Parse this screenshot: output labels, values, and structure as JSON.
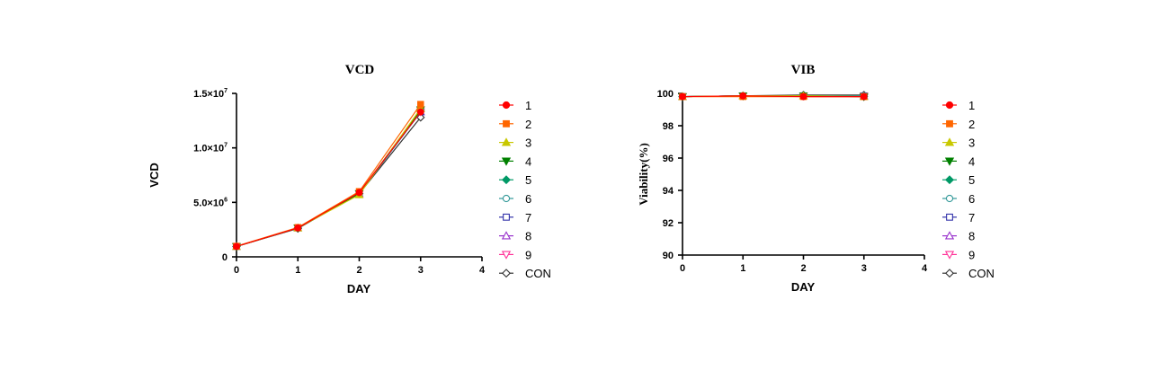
{
  "chart_data": [
    {
      "type": "line",
      "title": "VCD",
      "xlabel": "DAY",
      "ylabel": "VCD",
      "xlim": [
        0,
        4
      ],
      "ylim": [
        0,
        15000000
      ],
      "x_ticks": [
        0,
        1,
        2,
        3,
        4
      ],
      "x_tick_labels": [
        "0",
        "1",
        "2",
        "3",
        "4"
      ],
      "y_ticks": [
        0,
        5000000,
        10000000,
        15000000
      ],
      "y_tick_labels": [
        {
          "mantissa": "0",
          "exp": ""
        },
        {
          "mantissa": "5.0×10",
          "exp": "6"
        },
        {
          "mantissa": "1.0×10",
          "exp": "7"
        },
        {
          "mantissa": "1.5×10",
          "exp": "7"
        }
      ],
      "grid": false,
      "legend_position": "right",
      "x": [
        0,
        1,
        2,
        3
      ],
      "series": [
        {
          "name": "1",
          "values": [
            950000,
            2650000,
            5900000,
            13300000
          ]
        },
        {
          "name": "2",
          "values": [
            980000,
            2700000,
            6000000,
            14000000
          ]
        },
        {
          "name": "3",
          "values": [
            950000,
            2650000,
            5700000,
            13600000
          ]
        },
        {
          "name": "4",
          "values": [
            950000,
            2650000,
            5800000,
            13500000
          ]
        },
        {
          "name": "5",
          "values": [
            950000,
            2650000,
            5800000,
            13400000
          ]
        },
        {
          "name": "6",
          "values": [
            950000,
            2650000,
            5800000,
            13300000
          ]
        },
        {
          "name": "7",
          "values": [
            950000,
            2650000,
            5800000,
            13300000
          ]
        },
        {
          "name": "8",
          "values": [
            950000,
            2650000,
            5800000,
            13300000
          ]
        },
        {
          "name": "9",
          "values": [
            950000,
            2650000,
            5800000,
            13300000
          ]
        },
        {
          "name": "CON",
          "values": [
            950000,
            2600000,
            5800000,
            12800000
          ]
        }
      ]
    },
    {
      "type": "line",
      "title": "VIB",
      "xlabel": "DAY",
      "ylabel": "Viability(%)",
      "xlim": [
        0,
        4
      ],
      "ylim": [
        90,
        100
      ],
      "x_ticks": [
        0,
        1,
        2,
        3,
        4
      ],
      "x_tick_labels": [
        "0",
        "1",
        "2",
        "3",
        "4"
      ],
      "y_ticks": [
        90,
        92,
        94,
        96,
        98,
        100
      ],
      "y_tick_labels": [
        {
          "mantissa": "90",
          "exp": ""
        },
        {
          "mantissa": "92",
          "exp": ""
        },
        {
          "mantissa": "94",
          "exp": ""
        },
        {
          "mantissa": "96",
          "exp": ""
        },
        {
          "mantissa": "98",
          "exp": ""
        },
        {
          "mantissa": "100",
          "exp": ""
        }
      ],
      "grid": false,
      "legend_position": "right",
      "x": [
        0,
        1,
        2,
        3
      ],
      "series": [
        {
          "name": "1",
          "values": [
            99.8,
            99.85,
            99.8,
            99.8
          ]
        },
        {
          "name": "2",
          "values": [
            99.8,
            99.8,
            99.8,
            99.8
          ]
        },
        {
          "name": "3",
          "values": [
            99.8,
            99.85,
            99.85,
            99.8
          ]
        },
        {
          "name": "4",
          "values": [
            99.8,
            99.85,
            99.85,
            99.8
          ]
        },
        {
          "name": "5",
          "values": [
            99.8,
            99.85,
            99.85,
            99.8
          ]
        },
        {
          "name": "6",
          "values": [
            99.8,
            99.85,
            99.85,
            99.85
          ]
        },
        {
          "name": "7",
          "values": [
            99.8,
            99.85,
            99.85,
            99.85
          ]
        },
        {
          "name": "8",
          "values": [
            99.8,
            99.85,
            99.85,
            99.85
          ]
        },
        {
          "name": "9",
          "values": [
            99.8,
            99.85,
            99.85,
            99.85
          ]
        },
        {
          "name": "CON",
          "values": [
            99.8,
            99.85,
            99.9,
            99.9
          ]
        }
      ]
    }
  ],
  "legend": [
    {
      "name": "1",
      "color": "#ff0000",
      "marker": "circle",
      "filled": true
    },
    {
      "name": "2",
      "color": "#ff6600",
      "marker": "square",
      "filled": true
    },
    {
      "name": "3",
      "color": "#c8c800",
      "marker": "triangle-up",
      "filled": true
    },
    {
      "name": "4",
      "color": "#008000",
      "marker": "triangle-down",
      "filled": true
    },
    {
      "name": "5",
      "color": "#009966",
      "marker": "diamond",
      "filled": true
    },
    {
      "name": "6",
      "color": "#339999",
      "marker": "circle",
      "filled": false
    },
    {
      "name": "7",
      "color": "#3333aa",
      "marker": "square",
      "filled": false
    },
    {
      "name": "8",
      "color": "#9933cc",
      "marker": "triangle-up",
      "filled": false
    },
    {
      "name": "9",
      "color": "#ff3399",
      "marker": "triangle-down",
      "filled": false
    },
    {
      "name": "CON",
      "color": "#333333",
      "marker": "diamond",
      "filled": false
    }
  ]
}
